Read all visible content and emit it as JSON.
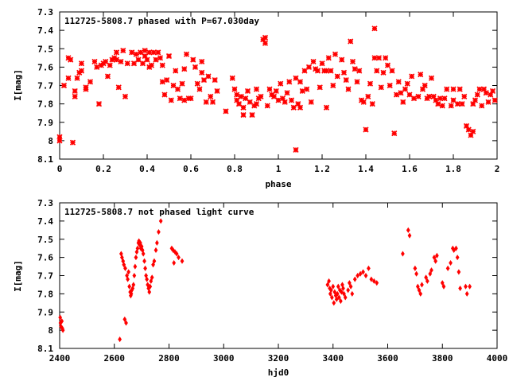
{
  "chart_data": [
    {
      "type": "scatter",
      "title": "112725-5808.7 phased with P=67.030day",
      "xlabel": "phase",
      "ylabel": "I[mag]",
      "xlim": [
        0,
        2
      ],
      "ylim": [
        8.1,
        7.3
      ],
      "y_inverted": true,
      "xticks": [
        "0",
        "0.2",
        "0.4",
        "0.6",
        "0.8",
        "1",
        "1.2",
        "1.4",
        "1.6",
        "1.8",
        "2"
      ],
      "yticks": [
        "7.3",
        "7.4",
        "7.5",
        "7.6",
        "7.7",
        "7.8",
        "7.9",
        "8",
        "8.1"
      ],
      "marker": "plus-x",
      "color": "#ff0000",
      "grid": false,
      "points": [
        [
          0.0,
          7.98
        ],
        [
          0.0,
          8.0
        ],
        [
          0.02,
          7.7
        ],
        [
          0.04,
          7.55
        ],
        [
          0.04,
          7.66
        ],
        [
          0.05,
          7.56
        ],
        [
          0.06,
          8.01
        ],
        [
          0.07,
          7.73
        ],
        [
          0.07,
          7.76
        ],
        [
          0.08,
          7.66
        ],
        [
          0.09,
          7.63
        ],
        [
          0.1,
          7.62
        ],
        [
          0.1,
          7.58
        ],
        [
          0.12,
          7.72
        ],
        [
          0.12,
          7.71
        ],
        [
          0.14,
          7.68
        ],
        [
          0.16,
          7.57
        ],
        [
          0.17,
          7.6
        ],
        [
          0.18,
          7.8
        ],
        [
          0.19,
          7.59
        ],
        [
          0.2,
          7.58
        ],
        [
          0.21,
          7.57
        ],
        [
          0.22,
          7.65
        ],
        [
          0.23,
          7.59
        ],
        [
          0.24,
          7.56
        ],
        [
          0.25,
          7.55
        ],
        [
          0.26,
          7.52
        ],
        [
          0.26,
          7.56
        ],
        [
          0.27,
          7.71
        ],
        [
          0.28,
          7.57
        ],
        [
          0.29,
          7.51
        ],
        [
          0.3,
          7.76
        ],
        [
          0.31,
          7.58
        ],
        [
          0.33,
          7.52
        ],
        [
          0.34,
          7.58
        ],
        [
          0.35,
          7.53
        ],
        [
          0.36,
          7.56
        ],
        [
          0.37,
          7.52
        ],
        [
          0.38,
          7.58
        ],
        [
          0.39,
          7.51
        ],
        [
          0.39,
          7.54
        ],
        [
          0.4,
          7.56
        ],
        [
          0.41,
          7.52
        ],
        [
          0.41,
          7.6
        ],
        [
          0.42,
          7.59
        ],
        [
          0.43,
          7.52
        ],
        [
          0.44,
          7.56
        ],
        [
          0.45,
          7.52
        ],
        [
          0.46,
          7.55
        ],
        [
          0.47,
          7.59
        ],
        [
          0.47,
          7.68
        ],
        [
          0.48,
          7.75
        ],
        [
          0.49,
          7.67
        ],
        [
          0.5,
          7.54
        ],
        [
          0.51,
          7.78
        ],
        [
          0.52,
          7.7
        ],
        [
          0.53,
          7.62
        ],
        [
          0.54,
          7.72
        ],
        [
          0.55,
          7.77
        ],
        [
          0.56,
          7.69
        ],
        [
          0.57,
          7.61
        ],
        [
          0.57,
          7.78
        ],
        [
          0.58,
          7.53
        ],
        [
          0.59,
          7.77
        ],
        [
          0.6,
          7.77
        ],
        [
          0.61,
          7.56
        ],
        [
          0.62,
          7.6
        ],
        [
          0.63,
          7.69
        ],
        [
          0.64,
          7.72
        ],
        [
          0.65,
          7.57
        ],
        [
          0.65,
          7.63
        ],
        [
          0.66,
          7.67
        ],
        [
          0.67,
          7.79
        ],
        [
          0.68,
          7.65
        ],
        [
          0.69,
          7.76
        ],
        [
          0.7,
          7.79
        ],
        [
          0.71,
          7.67
        ],
        [
          0.72,
          7.73
        ],
        [
          0.76,
          7.84
        ],
        [
          0.79,
          7.66
        ],
        [
          0.8,
          7.72
        ],
        [
          0.81,
          7.75
        ],
        [
          0.81,
          7.78
        ],
        [
          0.82,
          7.8
        ],
        [
          0.83,
          7.76
        ],
        [
          0.84,
          7.82
        ],
        [
          0.84,
          7.86
        ],
        [
          0.85,
          7.77
        ],
        [
          0.86,
          7.73
        ],
        [
          0.87,
          7.79
        ],
        [
          0.88,
          7.86
        ],
        [
          0.89,
          7.81
        ],
        [
          0.9,
          7.8
        ],
        [
          0.9,
          7.72
        ],
        [
          0.91,
          7.77
        ],
        [
          0.92,
          7.76
        ],
        [
          0.93,
          7.45
        ],
        [
          0.94,
          7.44
        ],
        [
          0.94,
          7.47
        ],
        [
          0.95,
          7.81
        ],
        [
          0.96,
          7.72
        ],
        [
          0.97,
          7.75
        ],
        [
          0.98,
          7.76
        ],
        [
          0.99,
          7.73
        ],
        [
          1.0,
          7.78
        ],
        [
          1.01,
          7.69
        ],
        [
          1.02,
          7.77
        ],
        [
          1.03,
          7.79
        ],
        [
          1.04,
          7.74
        ],
        [
          1.05,
          7.68
        ],
        [
          1.06,
          7.78
        ],
        [
          1.07,
          7.82
        ],
        [
          1.08,
          7.66
        ],
        [
          1.08,
          8.05
        ],
        [
          1.09,
          7.8
        ],
        [
          1.1,
          7.68
        ],
        [
          1.1,
          7.82
        ],
        [
          1.11,
          7.73
        ],
        [
          1.12,
          7.62
        ],
        [
          1.13,
          7.72
        ],
        [
          1.14,
          7.6
        ],
        [
          1.15,
          7.79
        ],
        [
          1.16,
          7.57
        ],
        [
          1.17,
          7.61
        ],
        [
          1.18,
          7.62
        ],
        [
          1.19,
          7.71
        ],
        [
          1.2,
          7.58
        ],
        [
          1.21,
          7.62
        ],
        [
          1.22,
          7.82
        ],
        [
          1.22,
          7.62
        ],
        [
          1.23,
          7.55
        ],
        [
          1.24,
          7.62
        ],
        [
          1.25,
          7.7
        ],
        [
          1.26,
          7.53
        ],
        [
          1.27,
          7.65
        ],
        [
          1.29,
          7.56
        ],
        [
          1.3,
          7.63
        ],
        [
          1.31,
          7.67
        ],
        [
          1.32,
          7.72
        ],
        [
          1.33,
          7.46
        ],
        [
          1.34,
          7.57
        ],
        [
          1.35,
          7.61
        ],
        [
          1.36,
          7.68
        ],
        [
          1.37,
          7.62
        ],
        [
          1.38,
          7.78
        ],
        [
          1.39,
          7.79
        ],
        [
          1.4,
          7.94
        ],
        [
          1.41,
          7.76
        ],
        [
          1.42,
          7.69
        ],
        [
          1.43,
          7.8
        ],
        [
          1.44,
          7.39
        ],
        [
          1.44,
          7.55
        ],
        [
          1.45,
          7.62
        ],
        [
          1.46,
          7.55
        ],
        [
          1.47,
          7.71
        ],
        [
          1.48,
          7.63
        ],
        [
          1.49,
          7.55
        ],
        [
          1.5,
          7.59
        ],
        [
          1.51,
          7.7
        ],
        [
          1.52,
          7.62
        ],
        [
          1.53,
          7.96
        ],
        [
          1.54,
          7.75
        ],
        [
          1.55,
          7.68
        ],
        [
          1.56,
          7.74
        ],
        [
          1.57,
          7.79
        ],
        [
          1.58,
          7.72
        ],
        [
          1.59,
          7.69
        ],
        [
          1.6,
          7.75
        ],
        [
          1.61,
          7.65
        ],
        [
          1.62,
          7.77
        ],
        [
          1.64,
          7.76
        ],
        [
          1.65,
          7.64
        ],
        [
          1.66,
          7.72
        ],
        [
          1.67,
          7.7
        ],
        [
          1.68,
          7.77
        ],
        [
          1.69,
          7.76
        ],
        [
          1.7,
          7.66
        ],
        [
          1.71,
          7.76
        ],
        [
          1.72,
          7.78
        ],
        [
          1.73,
          7.8
        ],
        [
          1.74,
          7.77
        ],
        [
          1.75,
          7.81
        ],
        [
          1.76,
          7.77
        ],
        [
          1.77,
          7.72
        ],
        [
          1.79,
          7.81
        ],
        [
          1.8,
          7.78
        ],
        [
          1.8,
          7.72
        ],
        [
          1.82,
          7.8
        ],
        [
          1.83,
          7.72
        ],
        [
          1.84,
          7.8
        ],
        [
          1.85,
          7.76
        ],
        [
          1.86,
          7.92
        ],
        [
          1.87,
          7.94
        ],
        [
          1.88,
          7.97
        ],
        [
          1.89,
          7.95
        ],
        [
          1.89,
          7.8
        ],
        [
          1.9,
          7.78
        ],
        [
          1.91,
          7.75
        ],
        [
          1.92,
          7.72
        ],
        [
          1.93,
          7.81
        ],
        [
          1.94,
          7.72
        ],
        [
          1.95,
          7.74
        ],
        [
          1.96,
          7.79
        ],
        [
          1.97,
          7.75
        ],
        [
          1.98,
          7.73
        ],
        [
          1.99,
          7.78
        ]
      ]
    },
    {
      "type": "scatter",
      "title": "112725-5808.7 not phased light curve",
      "xlabel": "hjd0",
      "ylabel": "I[mag]",
      "xlim": [
        2400,
        4000
      ],
      "ylim": [
        8.1,
        7.3
      ],
      "y_inverted": true,
      "xticks": [
        "2400",
        "2600",
        "2800",
        "3000",
        "3200",
        "3400",
        "3600",
        "3800",
        "4000"
      ],
      "yticks": [
        "7.3",
        "7.4",
        "7.5",
        "7.6",
        "7.7",
        "7.8",
        "7.9",
        "8",
        "8.1"
      ],
      "marker": "diamond",
      "color": "#ff0000",
      "grid": false,
      "points": [
        [
          2402,
          7.93
        ],
        [
          2403,
          7.96
        ],
        [
          2405,
          7.98
        ],
        [
          2408,
          7.95
        ],
        [
          2410,
          7.99
        ],
        [
          2412,
          8.0
        ],
        [
          2620,
          8.05
        ],
        [
          2625,
          7.58
        ],
        [
          2628,
          7.6
        ],
        [
          2632,
          7.62
        ],
        [
          2635,
          7.64
        ],
        [
          2638,
          7.94
        ],
        [
          2640,
          7.66
        ],
        [
          2643,
          7.96
        ],
        [
          2646,
          7.7
        ],
        [
          2649,
          7.72
        ],
        [
          2652,
          7.68
        ],
        [
          2655,
          7.76
        ],
        [
          2658,
          7.79
        ],
        [
          2660,
          7.81
        ],
        [
          2662,
          7.8
        ],
        [
          2664,
          7.78
        ],
        [
          2667,
          7.77
        ],
        [
          2670,
          7.75
        ],
        [
          2673,
          7.7
        ],
        [
          2676,
          7.65
        ],
        [
          2679,
          7.6
        ],
        [
          2682,
          7.57
        ],
        [
          2685,
          7.55
        ],
        [
          2688,
          7.52
        ],
        [
          2690,
          7.51
        ],
        [
          2692,
          7.53
        ],
        [
          2695,
          7.52
        ],
        [
          2697,
          7.55
        ],
        [
          2700,
          7.54
        ],
        [
          2703,
          7.56
        ],
        [
          2706,
          7.58
        ],
        [
          2710,
          7.62
        ],
        [
          2713,
          7.66
        ],
        [
          2716,
          7.7
        ],
        [
          2719,
          7.72
        ],
        [
          2722,
          7.75
        ],
        [
          2725,
          7.77
        ],
        [
          2728,
          7.79
        ],
        [
          2731,
          7.76
        ],
        [
          2734,
          7.73
        ],
        [
          2738,
          7.71
        ],
        [
          2742,
          7.64
        ],
        [
          2746,
          7.62
        ],
        [
          2752,
          7.56
        ],
        [
          2756,
          7.52
        ],
        [
          2762,
          7.46
        ],
        [
          2770,
          7.4
        ],
        [
          2810,
          7.55
        ],
        [
          2815,
          7.56
        ],
        [
          2818,
          7.63
        ],
        [
          2822,
          7.57
        ],
        [
          2828,
          7.58
        ],
        [
          2835,
          7.6
        ],
        [
          2848,
          7.62
        ],
        [
          3380,
          7.75
        ],
        [
          3385,
          7.73
        ],
        [
          3388,
          7.77
        ],
        [
          3390,
          7.8
        ],
        [
          3393,
          7.78
        ],
        [
          3396,
          7.82
        ],
        [
          3400,
          7.76
        ],
        [
          3403,
          7.85
        ],
        [
          3406,
          7.79
        ],
        [
          3410,
          7.81
        ],
        [
          3413,
          7.83
        ],
        [
          3416,
          7.8
        ],
        [
          3419,
          7.76
        ],
        [
          3422,
          7.82
        ],
        [
          3425,
          7.78
        ],
        [
          3428,
          7.84
        ],
        [
          3431,
          7.79
        ],
        [
          3434,
          7.75
        ],
        [
          3437,
          7.77
        ],
        [
          3440,
          7.8
        ],
        [
          3445,
          7.82
        ],
        [
          3455,
          7.78
        ],
        [
          3460,
          7.74
        ],
        [
          3465,
          7.76
        ],
        [
          3470,
          7.8
        ],
        [
          3480,
          7.72
        ],
        [
          3490,
          7.7
        ],
        [
          3500,
          7.69
        ],
        [
          3510,
          7.68
        ],
        [
          3520,
          7.7
        ],
        [
          3530,
          7.66
        ],
        [
          3540,
          7.72
        ],
        [
          3550,
          7.73
        ],
        [
          3560,
          7.74
        ],
        [
          3655,
          7.58
        ],
        [
          3675,
          7.45
        ],
        [
          3680,
          7.48
        ],
        [
          3700,
          7.66
        ],
        [
          3705,
          7.69
        ],
        [
          3710,
          7.76
        ],
        [
          3715,
          7.78
        ],
        [
          3720,
          7.8
        ],
        [
          3725,
          7.75
        ],
        [
          3740,
          7.71
        ],
        [
          3745,
          7.73
        ],
        [
          3755,
          7.69
        ],
        [
          3760,
          7.67
        ],
        [
          3770,
          7.6
        ],
        [
          3775,
          7.62
        ],
        [
          3780,
          7.59
        ],
        [
          3800,
          7.74
        ],
        [
          3805,
          7.76
        ],
        [
          3820,
          7.66
        ],
        [
          3830,
          7.63
        ],
        [
          3838,
          7.55
        ],
        [
          3842,
          7.56
        ],
        [
          3850,
          7.55
        ],
        [
          3855,
          7.6
        ],
        [
          3860,
          7.68
        ],
        [
          3865,
          7.77
        ],
        [
          3885,
          7.76
        ],
        [
          3890,
          7.8
        ],
        [
          3900,
          7.76
        ]
      ]
    }
  ]
}
